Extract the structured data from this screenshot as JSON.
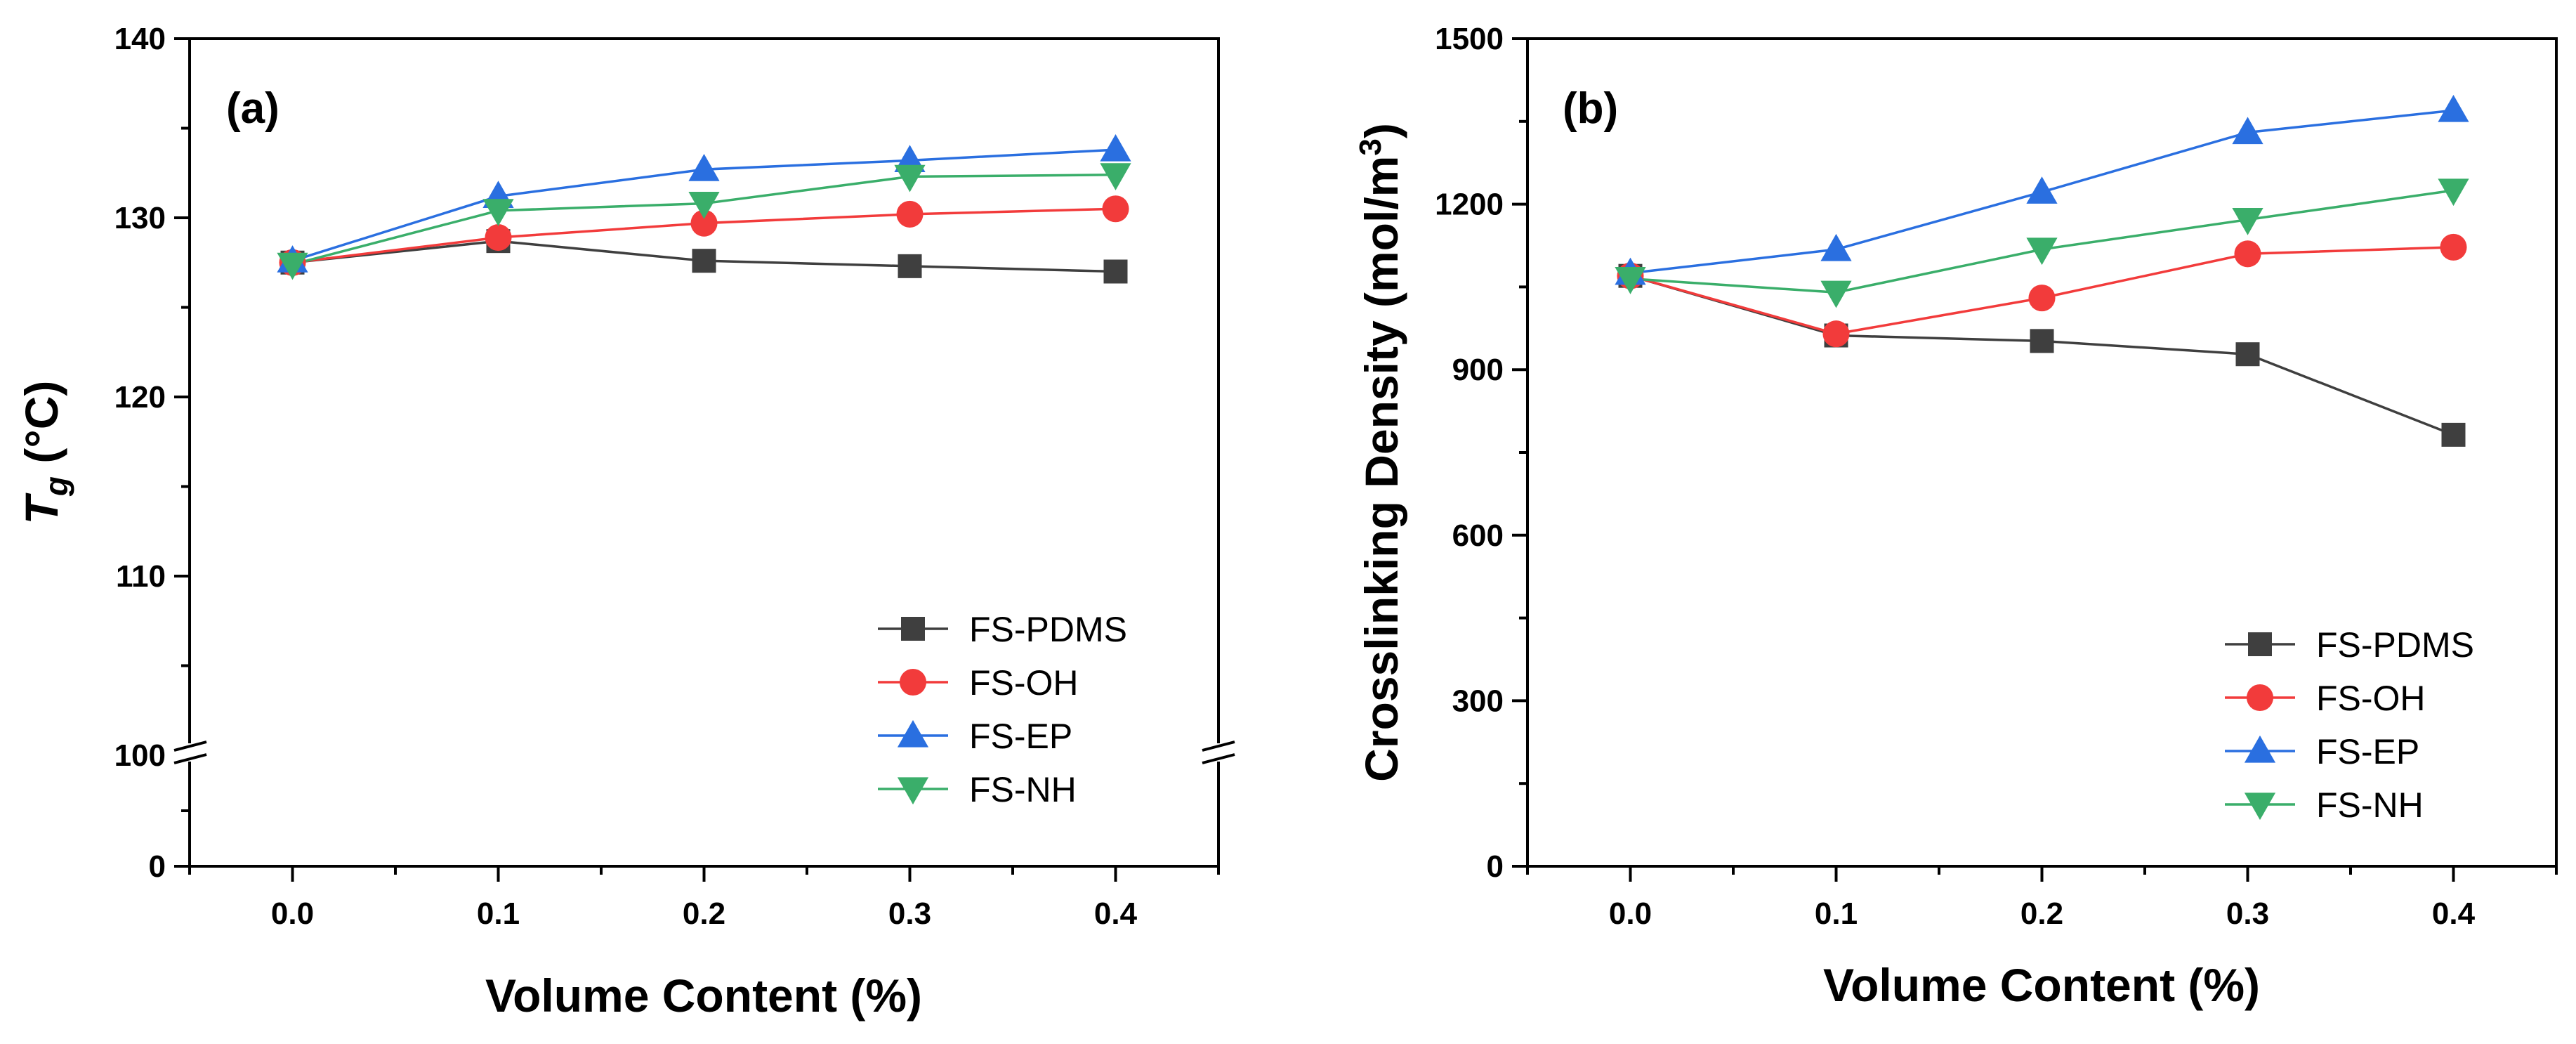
{
  "colors": {
    "FS-PDMS": "#3f3f3f",
    "FS-OH": "#f23b3b",
    "FS-EP": "#2a6fe0",
    "FS-NH": "#3aae6a"
  },
  "chart_data": [
    {
      "type": "line",
      "panel_label": "(a)",
      "xlabel": "Volume Content (%)",
      "ylabel": "T",
      "ylabel_sub": "g",
      "ylabel_unit": " (°C)",
      "x": [
        0.0,
        0.1,
        0.2,
        0.3,
        0.4
      ],
      "x_tick_labels": [
        "0.0",
        "0.1",
        "0.2",
        "0.3",
        "0.4"
      ],
      "xlim": [
        -0.05,
        0.45
      ],
      "y_axis_break": true,
      "ylim_lower": [
        0,
        100
      ],
      "ylim_upper": [
        100,
        140
      ],
      "y_tick_labels": [
        "0",
        "100",
        "110",
        "120",
        "130",
        "140"
      ],
      "legend_position": "bottom-right",
      "series": [
        {
          "name": "FS-PDMS",
          "marker": "square",
          "values": [
            127.5,
            128.7,
            127.6,
            127.3,
            127.0
          ]
        },
        {
          "name": "FS-OH",
          "marker": "circle",
          "values": [
            127.5,
            128.9,
            129.7,
            130.2,
            130.5
          ]
        },
        {
          "name": "FS-EP",
          "marker": "triangle-up",
          "values": [
            127.6,
            131.2,
            132.7,
            133.2,
            133.8
          ]
        },
        {
          "name": "FS-NH",
          "marker": "triangle-down",
          "values": [
            127.4,
            130.4,
            130.8,
            132.3,
            132.4
          ]
        }
      ]
    },
    {
      "type": "line",
      "panel_label": "(b)",
      "xlabel": "Volume Content (%)",
      "ylabel": "Crosslinking Density (mol/m",
      "ylabel_sup": "3",
      "ylabel_end": ")",
      "x": [
        0.0,
        0.1,
        0.2,
        0.3,
        0.4
      ],
      "x_tick_labels": [
        "0.0",
        "0.1",
        "0.2",
        "0.3",
        "0.4"
      ],
      "xlim": [
        -0.05,
        0.45
      ],
      "ylim": [
        0,
        1500
      ],
      "y_tick_labels": [
        "0",
        "300",
        "600",
        "900",
        "1200",
        "1500"
      ],
      "legend_position": "bottom-right",
      "series": [
        {
          "name": "FS-PDMS",
          "marker": "square",
          "values": [
            1070,
            962,
            952,
            928,
            782
          ]
        },
        {
          "name": "FS-OH",
          "marker": "circle",
          "values": [
            1070,
            965,
            1030,
            1110,
            1122
          ]
        },
        {
          "name": "FS-EP",
          "marker": "triangle-up",
          "values": [
            1075,
            1118,
            1222,
            1330,
            1370
          ]
        },
        {
          "name": "FS-NH",
          "marker": "triangle-down",
          "values": [
            1065,
            1040,
            1118,
            1172,
            1225
          ]
        }
      ]
    }
  ]
}
